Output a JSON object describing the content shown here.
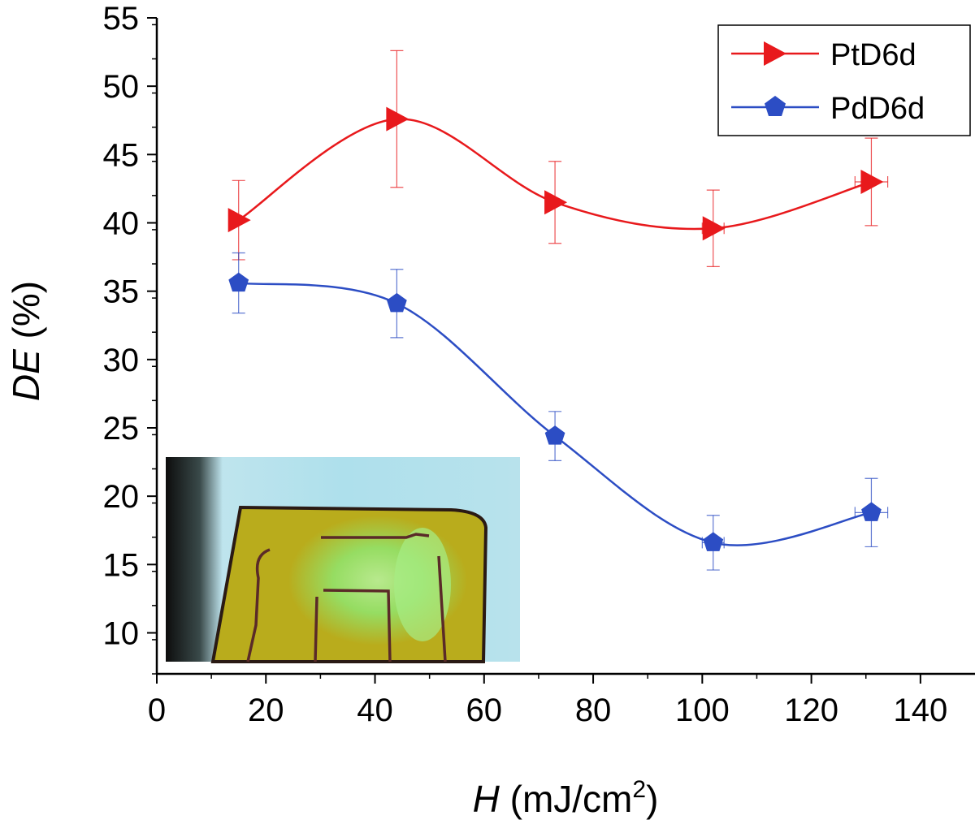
{
  "chart_data": {
    "type": "line",
    "xlabel_var": "H",
    "xlabel_unit": "(mJ/cm",
    "xlabel_sup": "2",
    "xlabel_close": ")",
    "ylabel_var": "DE",
    "ylabel_unit": "(%)",
    "xlim": [
      0,
      150
    ],
    "ylim": [
      7,
      55
    ],
    "xticks": [
      0,
      20,
      40,
      60,
      80,
      100,
      120,
      140
    ],
    "yticks": [
      10,
      15,
      20,
      25,
      30,
      35,
      40,
      45,
      50,
      55
    ],
    "grid": false,
    "legend_position": "top-right",
    "series": [
      {
        "name": "PtD6d",
        "color": "#e8191c",
        "marker": "triangle-right",
        "x": [
          15,
          44,
          73,
          102,
          131
        ],
        "y": [
          40.2,
          47.6,
          41.5,
          39.6,
          43.0
        ],
        "y_err": [
          2.9,
          5.0,
          3.0,
          2.8,
          3.2
        ],
        "x_err": [
          0,
          0,
          0,
          2,
          3
        ]
      },
      {
        "name": "PdD6d",
        "color": "#2c4dc4",
        "marker": "pentagon",
        "x": [
          15,
          44,
          73,
          102,
          131
        ],
        "y": [
          35.6,
          34.1,
          24.4,
          16.6,
          18.8
        ],
        "y_err": [
          2.2,
          2.5,
          1.8,
          2.0,
          2.5
        ],
        "x_err": [
          0,
          0,
          0,
          2,
          3
        ]
      }
    ],
    "inset": "photograph of a yellow-green fluorescent film sample"
  }
}
